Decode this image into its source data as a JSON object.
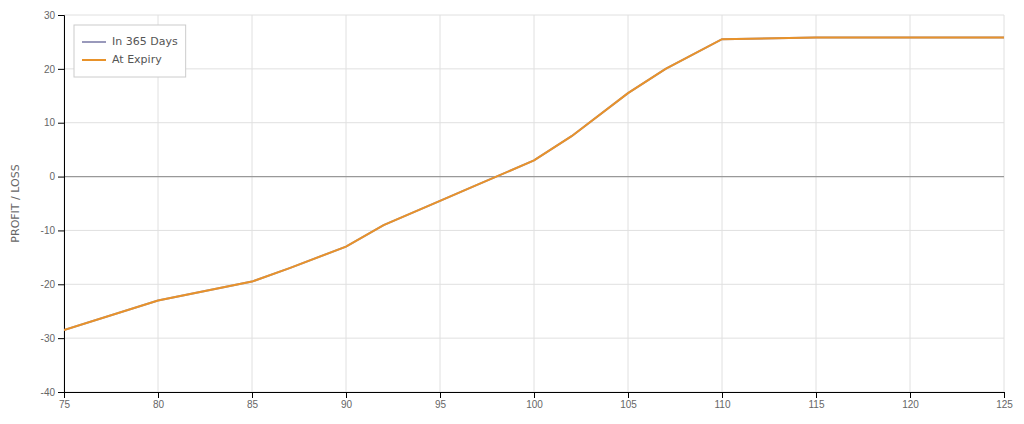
{
  "chart_data": {
    "type": "line",
    "ylabel": "PROFIT / LOSS",
    "xlim": [
      75,
      125
    ],
    "ylim": [
      -40,
      30
    ],
    "xticks": [
      75,
      80,
      85,
      90,
      95,
      100,
      105,
      110,
      115,
      120,
      125
    ],
    "yticks": [
      -40,
      -30,
      -20,
      -10,
      0,
      10,
      20,
      30
    ],
    "grid": true,
    "legend": "upper left",
    "x": [
      75,
      80,
      85,
      87,
      90,
      92,
      95,
      97,
      100,
      102,
      105,
      107,
      110,
      115,
      120,
      125
    ],
    "series": [
      {
        "name": "In 365 Days",
        "color": "#9999bb",
        "values": [
          -28.5,
          -23.0,
          -19.5,
          -17.0,
          -13.0,
          -9.0,
          -4.5,
          -1.5,
          3.0,
          7.5,
          15.5,
          20.0,
          25.5,
          25.8,
          25.8,
          25.8
        ]
      },
      {
        "name": "At Expiry",
        "color": "#e8922a",
        "values": [
          -28.5,
          -23.0,
          -19.5,
          -17.0,
          -13.0,
          -9.0,
          -4.5,
          -1.5,
          3.0,
          7.5,
          15.5,
          20.0,
          25.5,
          25.8,
          25.8,
          25.8
        ]
      }
    ]
  }
}
